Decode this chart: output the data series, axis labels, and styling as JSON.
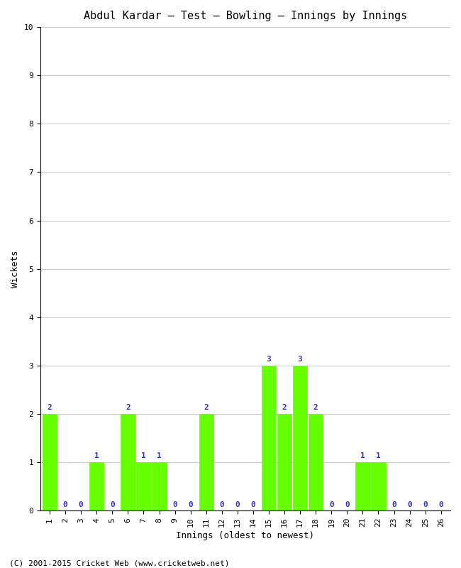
{
  "title": "Abdul Kardar – Test – Bowling – Innings by Innings",
  "xlabel": "Innings (oldest to newest)",
  "ylabel": "Wickets",
  "innings": [
    1,
    2,
    3,
    4,
    5,
    6,
    7,
    8,
    9,
    10,
    11,
    12,
    13,
    14,
    15,
    16,
    17,
    18,
    19,
    20,
    21,
    22,
    23,
    24,
    25,
    26
  ],
  "wickets": [
    2,
    0,
    0,
    1,
    0,
    2,
    1,
    1,
    0,
    0,
    2,
    0,
    0,
    0,
    3,
    2,
    3,
    2,
    0,
    0,
    1,
    1,
    0,
    0,
    0,
    0
  ],
  "bar_color": "#66ff00",
  "bar_edge_color": "#66ff00",
  "label_color": "#3333cc",
  "ylim": [
    0,
    10
  ],
  "yticks": [
    0,
    1,
    2,
    3,
    4,
    5,
    6,
    7,
    8,
    9,
    10
  ],
  "background_color": "#ffffff",
  "grid_color": "#cccccc",
  "title_fontsize": 11,
  "label_fontsize": 9,
  "tick_fontsize": 8,
  "annotation_fontsize": 8,
  "footer": "(C) 2001-2015 Cricket Web (www.cricketweb.net)"
}
